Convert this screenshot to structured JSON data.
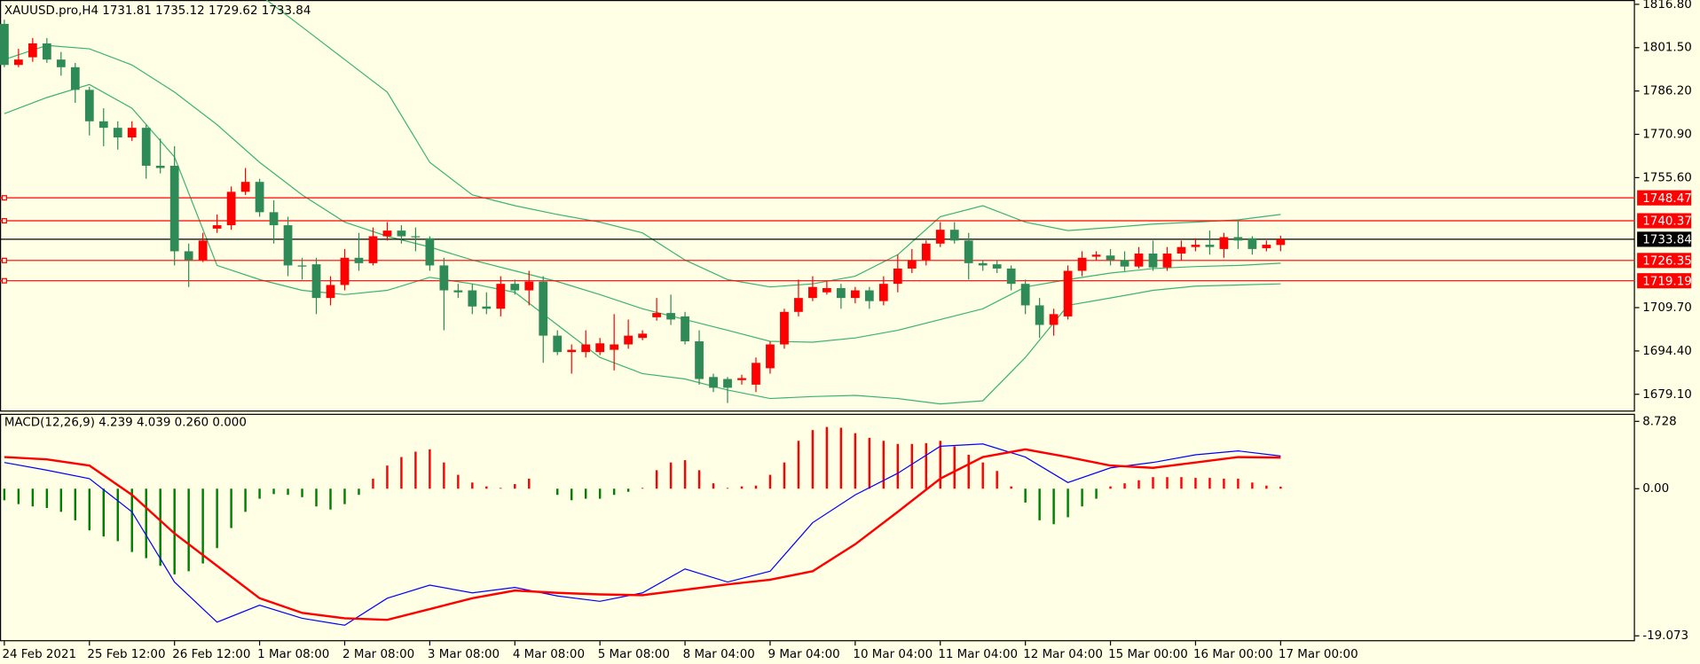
{
  "chart_data": [
    {
      "type": "candlestick",
      "title": "XAUUSD.pro,H4  1731.81 1735.12 1729.62 1733.84",
      "categories": [
        "24 Feb 2021",
        null,
        null,
        null,
        null,
        null,
        "25 Feb 12:00",
        null,
        null,
        null,
        null,
        null,
        "26 Feb 12:00",
        null,
        null,
        null,
        null,
        null,
        "1 Mar 08:00",
        null,
        null,
        null,
        null,
        null,
        "2 Mar 08:00",
        null,
        null,
        null,
        null,
        null,
        "3 Mar 08:00",
        null,
        null,
        null,
        null,
        null,
        "4 Mar 08:00",
        null,
        null,
        null,
        null,
        null,
        "5 Mar 08:00",
        null,
        null,
        null,
        null,
        null,
        "8 Mar 04:00",
        null,
        null,
        null,
        null,
        null,
        "9 Mar 04:00",
        null,
        null,
        null,
        null,
        null,
        "10 Mar 04:00",
        null,
        null,
        null,
        null,
        null,
        "11 Mar 04:00",
        null,
        null,
        null,
        null,
        null,
        "12 Mar 04:00",
        null,
        null,
        null,
        null,
        null,
        "15 Mar 00:00",
        null,
        null,
        null,
        null,
        null,
        "16 Mar 00:00",
        null,
        null,
        null,
        null,
        null,
        "17 Mar 00:00"
      ],
      "open": [
        1809.9,
        1795.4,
        1798.1,
        1803.0,
        1797.3,
        1794.6,
        1786.6,
        1775.5,
        1773.2,
        1769.8,
        1773.2,
        1759.8,
        1759.8,
        1729.6,
        1726.5,
        1737.6,
        1738.8,
        1750.6,
        1754.1,
        1743.4,
        1738.8,
        1724.6,
        1725.0,
        1713.1,
        1717.7,
        1727.3,
        1725.4,
        1734.9,
        1736.9,
        1734.9,
        1734.2,
        1724.6,
        1715.8,
        1715.8,
        1710.1,
        1709.3,
        1718.1,
        1715.8,
        1718.9,
        1699.8,
        1694.0,
        1694.0,
        1694.0,
        1694.8,
        1696.7,
        1699.0,
        1706.3,
        1707.8,
        1706.6,
        1697.8,
        1685.2,
        1684.5,
        1684.1,
        1682.5,
        1688.3,
        1696.7,
        1708.2,
        1713.1,
        1715.1,
        1716.6,
        1713.1,
        1715.8,
        1712.0,
        1718.1,
        1723.5,
        1726.5,
        1732.3,
        1737.2,
        1733.4,
        1725.4,
        1725.0,
        1723.5,
        1718.1,
        1710.5,
        1703.6,
        1706.6,
        1722.7,
        1727.7,
        1728.1,
        1726.5,
        1724.2,
        1728.8,
        1723.9,
        1728.8,
        1731.1,
        1731.9,
        1730.4,
        1734.6,
        1734.2,
        1730.7,
        1731.81
      ],
      "high": [
        1811.4,
        1801.1,
        1804.9,
        1804.9,
        1800.0,
        1796.1,
        1787.7,
        1780.1,
        1775.5,
        1775.5,
        1774.3,
        1769.4,
        1766.7,
        1732.3,
        1736.1,
        1742.6,
        1752.5,
        1759.0,
        1755.2,
        1747.6,
        1741.8,
        1727.3,
        1727.3,
        1720.8,
        1730.4,
        1736.1,
        1738.0,
        1739.9,
        1738.8,
        1738.0,
        1734.9,
        1727.3,
        1718.1,
        1718.1,
        1715.1,
        1720.8,
        1719.6,
        1722.7,
        1720.8,
        1701.7,
        1696.7,
        1701.7,
        1699.0,
        1707.4,
        1705.5,
        1701.7,
        1713.1,
        1714.3,
        1708.2,
        1701.7,
        1686.4,
        1685.2,
        1686.0,
        1692.1,
        1697.8,
        1709.3,
        1719.6,
        1720.8,
        1718.9,
        1718.1,
        1717.0,
        1717.0,
        1720.8,
        1728.4,
        1730.4,
        1733.4,
        1739.9,
        1739.9,
        1736.1,
        1726.5,
        1726.5,
        1724.6,
        1719.6,
        1713.1,
        1709.3,
        1724.6,
        1729.6,
        1729.6,
        1730.4,
        1729.6,
        1731.1,
        1733.4,
        1731.1,
        1733.4,
        1734.2,
        1736.9,
        1736.1,
        1740.7,
        1734.9,
        1733.4,
        1735.12
      ],
      "low": [
        1794.6,
        1794.6,
        1796.5,
        1796.1,
        1791.6,
        1782.0,
        1770.5,
        1766.7,
        1765.5,
        1768.6,
        1755.2,
        1757.1,
        1724.6,
        1717.0,
        1725.8,
        1736.1,
        1737.2,
        1749.5,
        1741.8,
        1732.3,
        1720.8,
        1719.6,
        1707.4,
        1710.5,
        1715.8,
        1722.7,
        1724.6,
        1733.4,
        1732.3,
        1729.6,
        1722.7,
        1701.7,
        1713.1,
        1707.4,
        1707.4,
        1706.6,
        1714.3,
        1710.5,
        1690.2,
        1692.9,
        1686.4,
        1692.1,
        1692.9,
        1687.5,
        1695.2,
        1698.2,
        1705.1,
        1703.6,
        1696.7,
        1682.5,
        1679.9,
        1676.0,
        1682.5,
        1679.9,
        1686.4,
        1695.2,
        1706.6,
        1712.0,
        1714.3,
        1709.3,
        1711.2,
        1709.3,
        1710.5,
        1715.1,
        1721.9,
        1724.6,
        1731.1,
        1732.3,
        1719.6,
        1722.7,
        1721.9,
        1715.8,
        1707.4,
        1699.0,
        1699.8,
        1705.5,
        1720.8,
        1726.5,
        1724.6,
        1722.7,
        1723.5,
        1722.7,
        1722.7,
        1726.5,
        1729.6,
        1728.4,
        1727.3,
        1730.4,
        1728.4,
        1729.6,
        1729.62
      ],
      "close": [
        1795.4,
        1797.3,
        1803.0,
        1797.3,
        1794.6,
        1786.6,
        1775.5,
        1773.2,
        1769.8,
        1773.2,
        1759.8,
        1759.0,
        1729.6,
        1726.5,
        1733.4,
        1738.8,
        1750.6,
        1754.1,
        1743.4,
        1738.8,
        1724.6,
        1724.2,
        1713.1,
        1717.7,
        1727.3,
        1725.4,
        1734.9,
        1736.9,
        1734.9,
        1734.6,
        1724.6,
        1715.8,
        1715.1,
        1710.1,
        1709.3,
        1718.1,
        1715.8,
        1718.9,
        1699.8,
        1694.0,
        1694.8,
        1696.7,
        1697.1,
        1696.7,
        1699.8,
        1700.5,
        1707.8,
        1705.5,
        1697.8,
        1684.5,
        1681.4,
        1681.4,
        1684.8,
        1690.2,
        1696.7,
        1708.2,
        1713.1,
        1717.0,
        1716.6,
        1713.1,
        1715.8,
        1712.0,
        1718.1,
        1723.5,
        1726.5,
        1732.3,
        1737.2,
        1733.4,
        1725.4,
        1724.6,
        1723.5,
        1718.1,
        1710.5,
        1703.6,
        1707.4,
        1722.7,
        1727.3,
        1728.4,
        1726.5,
        1724.2,
        1728.8,
        1723.9,
        1728.8,
        1731.1,
        1731.9,
        1731.1,
        1734.6,
        1733.4,
        1730.4,
        1731.9,
        1733.84
      ],
      "up_color": "#ff0000",
      "down_color": "#2e8b57",
      "bands": {
        "x": [
          0,
          3,
          6,
          9,
          12,
          15,
          18,
          21,
          24,
          27,
          30,
          33,
          36,
          39,
          42,
          45,
          48,
          51,
          54,
          57,
          60,
          63,
          66,
          69,
          72,
          75,
          78,
          81,
          84,
          87,
          90
        ],
        "series": [
          {
            "color": "#3cb371",
            "values": [
              1826.0,
              1827.9,
              1829.8,
              1831.7,
              1833.6,
              1829.8,
              1820.2,
              1808.8,
              1797.3,
              1785.8,
              1761.0,
              1749.5,
              1745.7,
              1742.6,
              1739.9,
              1736.1,
              1726.5,
              1719.6,
              1717.0,
              1718.1,
              1720.8,
              1728.4,
              1741.8,
              1745.7,
              1739.9,
              1736.9,
              1738.0,
              1739.2,
              1739.9,
              1740.7,
              1742.6
            ]
          },
          {
            "color": "#3cb371",
            "values": [
              1797.3,
              1802.3,
              1801.1,
              1795.4,
              1785.8,
              1774.3,
              1761.0,
              1749.5,
              1739.9,
              1734.9,
              1731.1,
              1726.5,
              1722.7,
              1718.9,
              1714.3,
              1709.3,
              1705.5,
              1701.7,
              1697.8,
              1697.5,
              1699.0,
              1701.7,
              1705.5,
              1709.3,
              1717.0,
              1719.6,
              1721.9,
              1723.5,
              1724.2,
              1724.6,
              1725.4
            ]
          },
          {
            "color": "#3cb371",
            "values": [
              1778.2,
              1783.9,
              1788.5,
              1780.1,
              1762.9,
              1724.6,
              1719.6,
              1715.8,
              1714.3,
              1715.8,
              1720.4,
              1718.1,
              1715.1,
              1703.6,
              1692.1,
              1686.4,
              1684.5,
              1680.6,
              1677.6,
              1678.3,
              1678.7,
              1677.6,
              1675.7,
              1676.8,
              1692.1,
              1710.5,
              1713.1,
              1715.8,
              1717.3,
              1717.7,
              1718.1
            ]
          }
        ]
      },
      "levels": [
        {
          "value": 1748.47,
          "color": "#ff0000"
        },
        {
          "value": 1740.37,
          "color": "#ff0000"
        },
        {
          "value": 1733.84,
          "color": "#000000"
        },
        {
          "value": 1726.35,
          "color": "#ff0000"
        },
        {
          "value": 1719.19,
          "color": "#ff0000"
        }
      ],
      "ylim": [
        1672.98,
        1818.33
      ],
      "yticks": [
        {
          "value": 1816.8,
          "label": "1816.80"
        },
        {
          "value": 1801.5,
          "label": "1801.50"
        },
        {
          "value": 1786.2,
          "label": "1786.20"
        },
        {
          "value": 1770.9,
          "label": "1770.90"
        },
        {
          "value": 1755.6,
          "label": "1755.60"
        },
        {
          "value": 1709.7,
          "label": "1709.70"
        },
        {
          "value": 1694.4,
          "label": "1694.40"
        },
        {
          "value": 1679.1,
          "label": "1679.10"
        }
      ]
    },
    {
      "type": "macd",
      "title": "MACD(12,26,9) 4.239 4.039 0.260 0.000",
      "histogram": [
        -1.5,
        -2,
        -2.3,
        -2.5,
        -3,
        -4.1,
        -5.4,
        -6.2,
        -6.8,
        -8.2,
        -9,
        -10,
        -11.1,
        -10.7,
        -9.7,
        -7.7,
        -5.1,
        -3,
        -1.3,
        -0.7,
        -0.8,
        -1.1,
        -2.3,
        -2.7,
        -2,
        -0.8,
        1.3,
        3,
        4.1,
        4.8,
        5.1,
        3.4,
        1.8,
        0.8,
        0.3,
        0.1,
        0.6,
        1.3,
        0,
        -0.8,
        -1.5,
        -1.3,
        -1.3,
        -0.8,
        -0.4,
        0.1,
        2.4,
        3.4,
        3.7,
        2.4,
        0.7,
        0.1,
        0.3,
        0.4,
        1.8,
        3.4,
        6.2,
        7.6,
        8,
        7.9,
        7.2,
        6.6,
        6.2,
        5.8,
        5.8,
        5.9,
        6.2,
        5.5,
        4.4,
        3.4,
        2.3,
        0.3,
        -1.8,
        -4.1,
        -4.6,
        -3.7,
        -2.3,
        -1.3,
        0.3,
        0.7,
        1.1,
        1.5,
        1.5,
        1.5,
        1.4,
        1.4,
        1.3,
        1.3,
        0.8,
        0.4,
        0.26
      ],
      "up_color": "#ff0000",
      "down_color": "#008000",
      "x": [
        0,
        3,
        6,
        9,
        12,
        15,
        18,
        21,
        24,
        27,
        30,
        33,
        36,
        39,
        42,
        45,
        48,
        51,
        54,
        57,
        60,
        63,
        66,
        69,
        72,
        75,
        78,
        81,
        84,
        87,
        90
      ],
      "series": [
        {
          "color": "#0000ff",
          "values": [
            3.4,
            2.4,
            1.3,
            -3.0,
            -12.1,
            -17.3,
            -15.1,
            -16.8,
            -17.7,
            -14.2,
            -12.5,
            -13.5,
            -12.8,
            -13.9,
            -14.6,
            -13.5,
            -10.4,
            -12.1,
            -10.7,
            -4.4,
            -0.8,
            2.0,
            5.5,
            5.8,
            4.1,
            0.8,
            2.7,
            3.4,
            4.4,
            4.9,
            4.239
          ]
        },
        {
          "color": "#ff0000",
          "values": [
            4.1,
            3.8,
            3.0,
            -0.8,
            -5.8,
            -10.0,
            -14.2,
            -16.1,
            -16.8,
            -17.0,
            -15.6,
            -14.2,
            -13.2,
            -13.5,
            -13.7,
            -13.8,
            -13.1,
            -12.4,
            -11.8,
            -10.7,
            -7.2,
            -3.0,
            1.3,
            4.1,
            5.1,
            4.1,
            3.0,
            2.7,
            3.4,
            4.1,
            4.039
          ]
        }
      ],
      "ylim": [
        -19.073,
        8.728
      ],
      "yticks": [
        8.728,
        {
          "value": 0,
          "label": "0.00"
        },
        -19.073
      ]
    }
  ]
}
